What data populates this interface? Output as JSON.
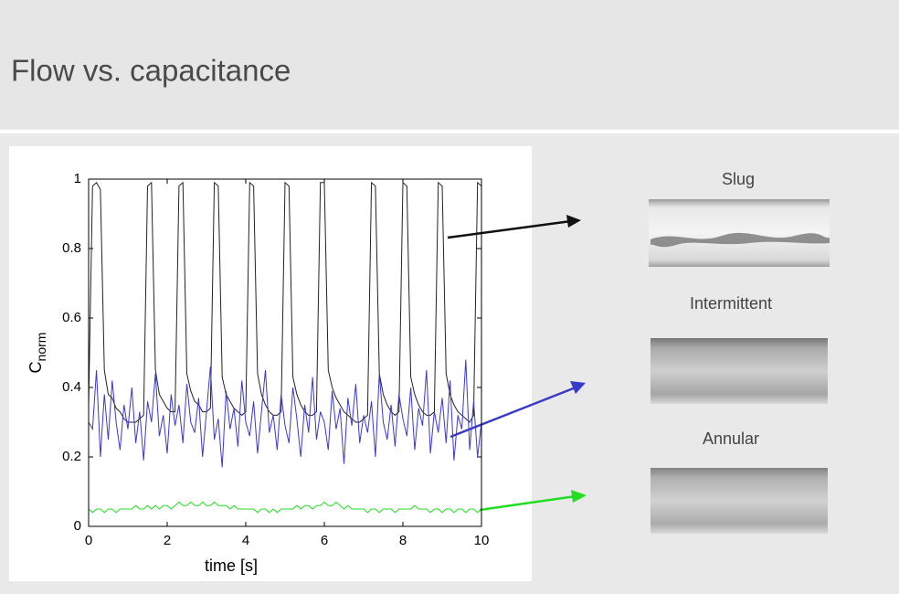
{
  "slide": {
    "title": "Flow vs. capacitance"
  },
  "chart_data": {
    "type": "line",
    "xlabel": "time [s]",
    "ylabel": "C",
    "ylabel_subscript": "norm",
    "xlim": [
      0,
      10
    ],
    "ylim": [
      0,
      1
    ],
    "xticks": [
      0,
      2,
      4,
      6,
      8,
      10
    ],
    "yticks": [
      0,
      0.2,
      0.4,
      0.6,
      0.8,
      1
    ],
    "grid": false,
    "x": [
      0,
      0.1,
      0.2,
      0.3,
      0.4,
      0.5,
      0.6,
      0.7,
      0.8,
      0.9,
      1,
      1.1,
      1.2,
      1.3,
      1.4,
      1.5,
      1.6,
      1.7,
      1.8,
      1.9,
      2,
      2.1,
      2.2,
      2.3,
      2.4,
      2.5,
      2.6,
      2.7,
      2.8,
      2.9,
      3,
      3.1,
      3.2,
      3.3,
      3.4,
      3.5,
      3.6,
      3.7,
      3.8,
      3.9,
      4,
      4.1,
      4.2,
      4.3,
      4.4,
      4.5,
      4.6,
      4.7,
      4.8,
      4.9,
      5,
      5.1,
      5.2,
      5.3,
      5.4,
      5.5,
      5.6,
      5.7,
      5.8,
      5.9,
      6,
      6.1,
      6.2,
      6.3,
      6.4,
      6.5,
      6.6,
      6.7,
      6.8,
      6.9,
      7,
      7.1,
      7.2,
      7.3,
      7.4,
      7.5,
      7.6,
      7.7,
      7.8,
      7.9,
      8,
      8.1,
      8.2,
      8.3,
      8.4,
      8.5,
      8.6,
      8.7,
      8.8,
      8.9,
      9,
      9.1,
      9.2,
      9.3,
      9.4,
      9.5,
      9.6,
      9.7,
      9.8,
      9.9,
      10
    ],
    "series": [
      {
        "name": "Slug",
        "color": "#222222",
        "values": [
          0.35,
          0.98,
          0.99,
          0.97,
          0.45,
          0.38,
          0.37,
          0.34,
          0.33,
          0.31,
          0.3,
          0.3,
          0.3,
          0.31,
          0.32,
          0.98,
          0.99,
          0.45,
          0.38,
          0.36,
          0.34,
          0.33,
          0.33,
          0.98,
          0.99,
          0.44,
          0.39,
          0.36,
          0.35,
          0.33,
          0.33,
          0.34,
          0.99,
          0.98,
          0.43,
          0.38,
          0.36,
          0.34,
          0.33,
          0.32,
          0.33,
          0.99,
          0.98,
          0.44,
          0.38,
          0.35,
          0.33,
          0.32,
          0.32,
          0.33,
          0.99,
          0.98,
          0.43,
          0.38,
          0.35,
          0.33,
          0.32,
          0.32,
          0.33,
          0.99,
          0.99,
          0.45,
          0.4,
          0.37,
          0.35,
          0.33,
          0.32,
          0.31,
          0.3,
          0.3,
          0.31,
          0.32,
          0.99,
          0.98,
          0.44,
          0.38,
          0.35,
          0.33,
          0.32,
          0.33,
          0.99,
          0.98,
          0.43,
          0.38,
          0.35,
          0.33,
          0.32,
          0.32,
          0.33,
          0.99,
          0.98,
          0.44,
          0.38,
          0.35,
          0.33,
          0.32,
          0.31,
          0.3,
          0.32,
          0.99,
          0.98
        ]
      },
      {
        "name": "Intermittent",
        "color": "#3a3ac8",
        "values": [
          0.3,
          0.28,
          0.45,
          0.2,
          0.38,
          0.25,
          0.42,
          0.3,
          0.22,
          0.35,
          0.28,
          0.4,
          0.24,
          0.33,
          0.19,
          0.36,
          0.3,
          0.44,
          0.26,
          0.32,
          0.21,
          0.38,
          0.29,
          0.35,
          0.24,
          0.41,
          0.3,
          0.27,
          0.37,
          0.2,
          0.33,
          0.46,
          0.25,
          0.31,
          0.17,
          0.39,
          0.28,
          0.34,
          0.23,
          0.42,
          0.3,
          0.26,
          0.36,
          0.21,
          0.33,
          0.45,
          0.27,
          0.32,
          0.22,
          0.38,
          0.29,
          0.24,
          0.4,
          0.31,
          0.2,
          0.35,
          0.27,
          0.43,
          0.25,
          0.33,
          0.3,
          0.22,
          0.39,
          0.28,
          0.34,
          0.18,
          0.37,
          0.29,
          0.41,
          0.24,
          0.32,
          0.27,
          0.36,
          0.2,
          0.44,
          0.3,
          0.25,
          0.35,
          0.23,
          0.38,
          0.31,
          0.26,
          0.4,
          0.22,
          0.34,
          0.29,
          0.45,
          0.21,
          0.33,
          0.27,
          0.37,
          0.24,
          0.42,
          0.19,
          0.32,
          0.28,
          0.48,
          0.22,
          0.36,
          0.2,
          0.3
        ]
      },
      {
        "name": "Annular",
        "color": "#22dd22",
        "values": [
          0.05,
          0.04,
          0.05,
          0.05,
          0.04,
          0.05,
          0.05,
          0.04,
          0.05,
          0.05,
          0.05,
          0.05,
          0.06,
          0.05,
          0.05,
          0.06,
          0.05,
          0.06,
          0.05,
          0.06,
          0.06,
          0.05,
          0.06,
          0.07,
          0.06,
          0.06,
          0.07,
          0.06,
          0.06,
          0.07,
          0.06,
          0.06,
          0.07,
          0.06,
          0.06,
          0.06,
          0.05,
          0.06,
          0.05,
          0.05,
          0.05,
          0.05,
          0.05,
          0.04,
          0.05,
          0.05,
          0.04,
          0.05,
          0.04,
          0.05,
          0.05,
          0.05,
          0.05,
          0.06,
          0.05,
          0.06,
          0.06,
          0.05,
          0.06,
          0.06,
          0.07,
          0.06,
          0.06,
          0.07,
          0.06,
          0.05,
          0.06,
          0.05,
          0.05,
          0.05,
          0.05,
          0.04,
          0.05,
          0.05,
          0.04,
          0.05,
          0.05,
          0.05,
          0.04,
          0.05,
          0.05,
          0.05,
          0.05,
          0.06,
          0.05,
          0.05,
          0.05,
          0.04,
          0.05,
          0.05,
          0.04,
          0.05,
          0.05,
          0.04,
          0.05,
          0.05,
          0.04,
          0.05,
          0.05,
          0.04,
          0.05
        ]
      }
    ]
  }
}
